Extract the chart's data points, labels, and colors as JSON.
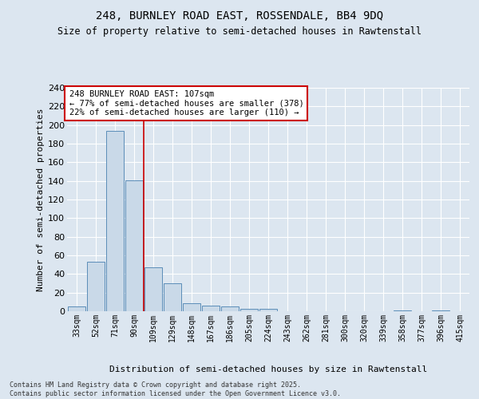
{
  "title1": "248, BURNLEY ROAD EAST, ROSSENDALE, BB4 9DQ",
  "title2": "Size of property relative to semi-detached houses in Rawtenstall",
  "xlabel": "Distribution of semi-detached houses by size in Rawtenstall",
  "ylabel": "Number of semi-detached properties",
  "categories": [
    "33sqm",
    "52sqm",
    "71sqm",
    "90sqm",
    "109sqm",
    "129sqm",
    "148sqm",
    "167sqm",
    "186sqm",
    "205sqm",
    "224sqm",
    "243sqm",
    "262sqm",
    "281sqm",
    "300sqm",
    "320sqm",
    "339sqm",
    "358sqm",
    "377sqm",
    "396sqm",
    "415sqm"
  ],
  "values": [
    5,
    53,
    194,
    141,
    47,
    30,
    9,
    6,
    5,
    3,
    3,
    0,
    0,
    0,
    0,
    0,
    0,
    1,
    0,
    1,
    0
  ],
  "bar_color": "#c9d9e8",
  "bar_edge_color": "#5b8db8",
  "vline_x": 3.5,
  "vline_color": "#cc0000",
  "annotation_text": "248 BURNLEY ROAD EAST: 107sqm\n← 77% of semi-detached houses are smaller (378)\n22% of semi-detached houses are larger (110) →",
  "annotation_box_color": "#ffffff",
  "annotation_box_edge_color": "#cc0000",
  "bg_color": "#dce6f0",
  "plot_bg_color": "#dce6f0",
  "footer": "Contains HM Land Registry data © Crown copyright and database right 2025.\nContains public sector information licensed under the Open Government Licence v3.0.",
  "ylim": [
    0,
    240
  ],
  "yticks": [
    0,
    20,
    40,
    60,
    80,
    100,
    120,
    140,
    160,
    180,
    200,
    220,
    240
  ]
}
